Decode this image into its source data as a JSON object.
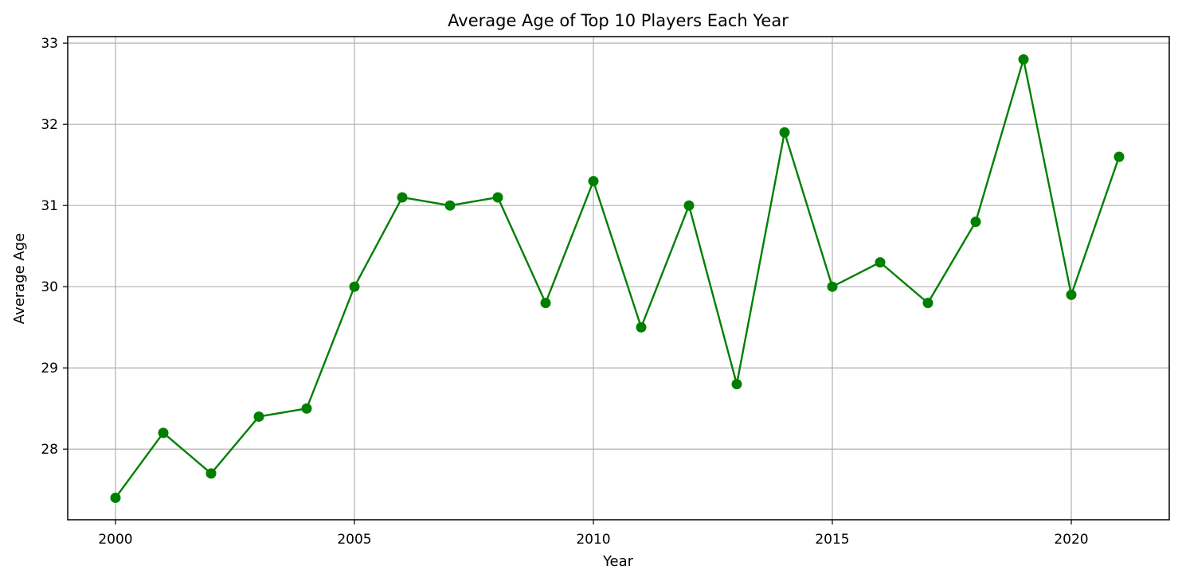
{
  "chart_data": {
    "type": "line",
    "title": "Average Age of Top 10 Players Each Year",
    "xlabel": "Year",
    "ylabel": "Average Age",
    "x": [
      2000,
      2001,
      2002,
      2003,
      2004,
      2005,
      2006,
      2007,
      2008,
      2009,
      2010,
      2011,
      2012,
      2013,
      2014,
      2015,
      2016,
      2017,
      2018,
      2019,
      2020,
      2021
    ],
    "series": [
      {
        "values": [
          27.4,
          28.2,
          27.7,
          28.4,
          28.5,
          30.0,
          31.1,
          31.0,
          31.1,
          29.8,
          31.3,
          29.5,
          31.0,
          28.8,
          31.9,
          30.0,
          30.3,
          29.8,
          30.8,
          32.8,
          29.9,
          31.6
        ],
        "color": "#008000",
        "marker": "circle"
      }
    ],
    "xlim": [
      1999,
      2022.05
    ],
    "ylim": [
      27.13,
      33.08
    ],
    "xticks": [
      "2000",
      "2005",
      "2010",
      "2015",
      "2020"
    ],
    "yticks": [
      "28",
      "29",
      "30",
      "31",
      "32",
      "33"
    ],
    "grid": true
  }
}
